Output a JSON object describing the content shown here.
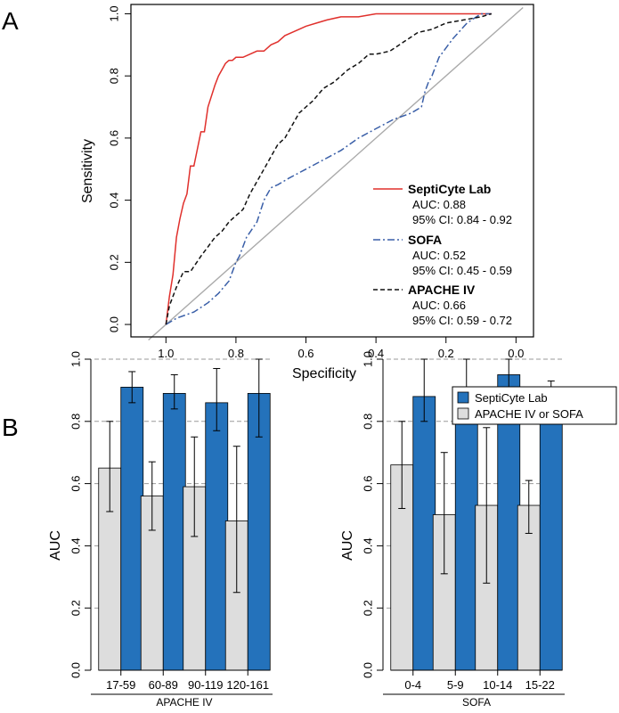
{
  "panels": {
    "a": "A",
    "b": "B"
  },
  "colors": {
    "septicyte": "#e0302c",
    "sofa": "#3a5fa8",
    "apache": "#111111",
    "diagonal": "#aaaaaa",
    "bar_blue": "#2472bb",
    "bar_grey": "#dddddd"
  },
  "chart_data": [
    {
      "type": "line",
      "xlabel": "Specificity",
      "ylabel": "Sensitivity",
      "xlim": [
        1.1,
        -0.05
      ],
      "ylim": [
        -0.04,
        1.03
      ],
      "x_ticks": [
        "1.0",
        "0.8",
        "0.6",
        "0.4",
        "0.2",
        "0.0"
      ],
      "y_ticks": [
        "0.0",
        "0.2",
        "0.4",
        "0.6",
        "0.8",
        "1.0"
      ],
      "reference_line": true,
      "legend_position": "bottom-right",
      "series": [
        {
          "name": "SeptiCyte Lab",
          "auc": "AUC: 0.88",
          "ci": "95% CI: 0.84 - 0.92",
          "color": "#e0302c",
          "style": "solid",
          "x": [
            1.0,
            0.99,
            0.98,
            0.97,
            0.96,
            0.95,
            0.94,
            0.93,
            0.92,
            0.9,
            0.89,
            0.88,
            0.86,
            0.85,
            0.84,
            0.83,
            0.82,
            0.81,
            0.8,
            0.78,
            0.76,
            0.74,
            0.72,
            0.7,
            0.68,
            0.66,
            0.64,
            0.62,
            0.6,
            0.57,
            0.54,
            0.5,
            0.45,
            0.4,
            0.3,
            0.2,
            0.1,
            0.07
          ],
          "y": [
            0.0,
            0.09,
            0.16,
            0.28,
            0.34,
            0.39,
            0.42,
            0.51,
            0.51,
            0.62,
            0.62,
            0.7,
            0.77,
            0.8,
            0.82,
            0.84,
            0.85,
            0.85,
            0.86,
            0.86,
            0.87,
            0.88,
            0.88,
            0.9,
            0.91,
            0.93,
            0.94,
            0.95,
            0.96,
            0.97,
            0.98,
            0.99,
            0.99,
            1.0,
            1.0,
            1.0,
            1.0,
            1.0
          ]
        },
        {
          "name": "SOFA",
          "auc": "AUC: 0.52",
          "ci": "95% CI: 0.45 - 0.59",
          "color": "#3a5fa8",
          "style": "dashdot",
          "x": [
            1.0,
            0.97,
            0.92,
            0.88,
            0.85,
            0.82,
            0.8,
            0.79,
            0.77,
            0.74,
            0.72,
            0.7,
            0.68,
            0.65,
            0.6,
            0.55,
            0.5,
            0.45,
            0.4,
            0.35,
            0.3,
            0.27,
            0.26,
            0.25,
            0.24,
            0.22,
            0.18,
            0.14,
            0.1,
            0.07
          ],
          "y": [
            0.0,
            0.02,
            0.04,
            0.07,
            0.1,
            0.14,
            0.2,
            0.22,
            0.28,
            0.33,
            0.4,
            0.44,
            0.45,
            0.47,
            0.5,
            0.53,
            0.56,
            0.6,
            0.63,
            0.66,
            0.68,
            0.7,
            0.75,
            0.78,
            0.8,
            0.86,
            0.92,
            0.97,
            1.0,
            1.0
          ]
        },
        {
          "name": "APACHE IV",
          "auc": "AUC: 0.66",
          "ci": "95% CI: 0.59 - 0.72",
          "color": "#111111",
          "style": "dashed",
          "x": [
            1.0,
            0.99,
            0.97,
            0.95,
            0.93,
            0.9,
            0.88,
            0.86,
            0.84,
            0.82,
            0.8,
            0.78,
            0.76,
            0.74,
            0.72,
            0.7,
            0.68,
            0.66,
            0.64,
            0.62,
            0.6,
            0.58,
            0.55,
            0.52,
            0.5,
            0.48,
            0.45,
            0.42,
            0.4,
            0.36,
            0.32,
            0.28,
            0.24,
            0.2,
            0.15,
            0.1,
            0.07
          ],
          "y": [
            0.0,
            0.06,
            0.12,
            0.17,
            0.17,
            0.22,
            0.25,
            0.28,
            0.3,
            0.33,
            0.35,
            0.37,
            0.42,
            0.46,
            0.5,
            0.54,
            0.58,
            0.6,
            0.64,
            0.68,
            0.7,
            0.72,
            0.76,
            0.78,
            0.8,
            0.82,
            0.84,
            0.87,
            0.87,
            0.88,
            0.91,
            0.94,
            0.95,
            0.97,
            0.98,
            0.99,
            1.0
          ]
        }
      ]
    },
    {
      "type": "bar",
      "ylabel": "AUC",
      "xlabel": "APACHE IV",
      "ylim": [
        0,
        1.0
      ],
      "y_ticks": [
        "0.0",
        "0.2",
        "0.4",
        "0.6",
        "0.8",
        "1.0"
      ],
      "categories": [
        "17-59",
        "60-89",
        "90-119",
        "120-161"
      ],
      "grid": true,
      "error_bars": true,
      "series": [
        {
          "name": "APACHE IV or SOFA",
          "color": "#dddddd",
          "values": [
            0.65,
            0.56,
            0.59,
            0.48
          ],
          "lower": [
            0.51,
            0.45,
            0.43,
            0.25
          ],
          "upper": [
            0.8,
            0.67,
            0.75,
            0.72
          ]
        },
        {
          "name": "SeptiCyte Lab",
          "color": "#2472bb",
          "values": [
            0.91,
            0.89,
            0.86,
            0.89
          ],
          "lower": [
            0.86,
            0.84,
            0.77,
            0.75
          ],
          "upper": [
            0.96,
            0.95,
            0.97,
            1.0
          ]
        }
      ]
    },
    {
      "type": "bar",
      "ylabel": "AUC",
      "xlabel": "SOFA",
      "ylim": [
        0,
        1.0
      ],
      "y_ticks": [
        "0.0",
        "0.2",
        "0.4",
        "0.6",
        "0.8",
        "1.0"
      ],
      "categories": [
        "0-4",
        "5-9",
        "10-14",
        "15-22"
      ],
      "grid": true,
      "error_bars": true,
      "legend_position": "top-right",
      "legend": [
        "SeptiCyte Lab",
        "APACHE IV or SOFA"
      ],
      "series": [
        {
          "name": "APACHE IV or SOFA",
          "color": "#dddddd",
          "values": [
            0.66,
            0.5,
            0.53,
            0.53
          ],
          "lower": [
            0.52,
            0.31,
            0.28,
            0.44
          ],
          "upper": [
            0.8,
            0.7,
            0.78,
            0.61
          ]
        },
        {
          "name": "SeptiCyte Lab",
          "color": "#2472bb",
          "values": [
            0.88,
            0.91,
            0.95,
            0.88
          ],
          "lower": [
            0.8,
            0.82,
            0.89,
            0.84
          ],
          "upper": [
            1.0,
            1.0,
            1.0,
            0.93
          ]
        }
      ]
    }
  ]
}
